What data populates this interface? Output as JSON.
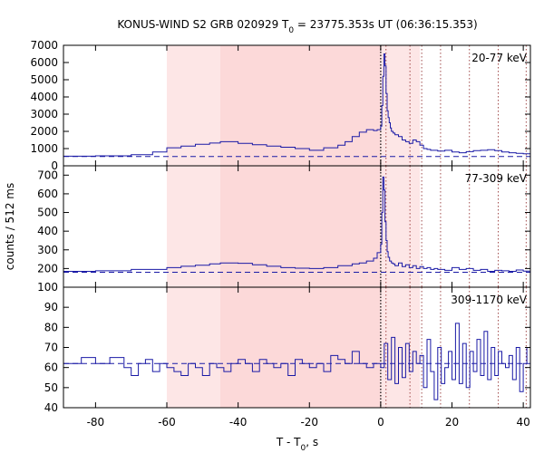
{
  "chart_data": {
    "type": "line",
    "title": "KONUS-WIND S2 GRB 020929 T",
    "title_sub": "0",
    "title_tail": " = 23775.353s UT (06:36:15.353)",
    "xlabel": "T - T",
    "xlabel_sub": "0",
    "xlabel_tail": ", s",
    "ylabel": "counts / 512 ms",
    "xlim": [
      -89,
      42
    ],
    "x_ticks": [
      -80,
      -60,
      -40,
      -20,
      0,
      20,
      40
    ],
    "x_tick_labels": [
      "-80",
      "-60",
      "-40",
      "-20",
      "0",
      "20",
      "40"
    ],
    "shaded_regions": [
      {
        "x0": -60,
        "x1": -45,
        "color": "#fde6e6"
      },
      {
        "x0": -45,
        "x1": 0,
        "color": "#fcd9d9"
      },
      {
        "x0": 0,
        "x1": 11,
        "color": "#fde6e6"
      }
    ],
    "trigger_line": 0,
    "marker_lines": [
      1.5,
      8.2,
      11.5,
      16.8,
      24.9,
      33.0,
      40.8
    ],
    "line_color": "#1a1aa6",
    "panels": [
      {
        "label": "20-77 keV",
        "ylim": [
          0,
          7000
        ],
        "y_ticks": [
          0,
          1000,
          2000,
          3000,
          4000,
          5000,
          6000,
          7000
        ],
        "y_tick_labels": [
          "0",
          "1000",
          "2000",
          "3000",
          "4000",
          "5000",
          "6000",
          "7000"
        ],
        "background": 540,
        "x": [
          -89,
          -80,
          -70,
          -64,
          -60,
          -56,
          -52,
          -48,
          -45,
          -40,
          -36,
          -32,
          -28,
          -24,
          -20,
          -16,
          -12,
          -10,
          -8,
          -6,
          -4,
          -2,
          -1,
          0,
          0.3,
          0.6,
          0.9,
          1.2,
          1.5,
          1.8,
          2.1,
          2.4,
          2.7,
          3.0,
          3.5,
          4.0,
          5.0,
          6.0,
          7.0,
          8.0,
          9.0,
          10.0,
          11.0,
          12.0,
          13.0,
          14.0,
          16.0,
          18.0,
          20.0,
          22.0,
          24.0,
          26.0,
          28.0,
          30.0,
          32.0,
          34.0,
          36.0,
          38.0,
          40.0,
          42
        ],
        "y": [
          560,
          580,
          650,
          800,
          1050,
          1150,
          1250,
          1320,
          1400,
          1300,
          1220,
          1150,
          1080,
          1000,
          900,
          1050,
          1200,
          1400,
          1700,
          1950,
          2100,
          2050,
          2100,
          2300,
          3500,
          5200,
          6500,
          5800,
          4200,
          3200,
          2800,
          2500,
          2200,
          2000,
          1900,
          1800,
          1700,
          1500,
          1400,
          1300,
          1500,
          1400,
          1200,
          1000,
          950,
          900,
          850,
          900,
          800,
          760,
          820,
          880,
          900,
          930,
          880,
          800,
          760,
          720,
          700,
          680
        ]
      },
      {
        "label": "77-309 keV",
        "ylim": [
          100,
          750
        ],
        "y_ticks": [
          100,
          200,
          300,
          400,
          500,
          600,
          700
        ],
        "y_tick_labels": [
          "100",
          "200",
          "300",
          "400",
          "500",
          "600",
          "700"
        ],
        "background": 180,
        "x": [
          -89,
          -80,
          -70,
          -60,
          -56,
          -52,
          -48,
          -45,
          -40,
          -36,
          -32,
          -28,
          -24,
          -20,
          -16,
          -12,
          -8,
          -6,
          -4,
          -2,
          -1,
          0,
          0.3,
          0.6,
          0.9,
          1.2,
          1.5,
          1.8,
          2.1,
          2.5,
          3.0,
          3.5,
          4.0,
          5.0,
          6.0,
          7.0,
          8.0,
          9.0,
          10.0,
          11.0,
          12.0,
          13.0,
          14.0,
          15.0,
          16.0,
          18.0,
          20.0,
          22.0,
          24.0,
          26.0,
          28.0,
          30.0,
          32.0,
          34.0,
          36.0,
          38.0,
          40.0,
          42
        ],
        "y": [
          185,
          188,
          195,
          205,
          212,
          218,
          225,
          230,
          228,
          220,
          212,
          205,
          202,
          200,
          205,
          215,
          225,
          230,
          240,
          255,
          285,
          330,
          500,
          690,
          620,
          450,
          350,
          290,
          260,
          240,
          230,
          225,
          215,
          230,
          210,
          220,
          205,
          215,
          200,
          210,
          200,
          205,
          195,
          200,
          195,
          190,
          205,
          195,
          200,
          190,
          195,
          185,
          190,
          188,
          185,
          192,
          186,
          190
        ]
      },
      {
        "label": "309-1170 keV",
        "ylim": [
          40,
          100
        ],
        "y_ticks": [
          40,
          50,
          60,
          70,
          80,
          90
        ],
        "y_tick_labels": [
          "40",
          "50",
          "60",
          "70",
          "80",
          "90"
        ],
        "background": 62,
        "x": [
          -89,
          -84,
          -80,
          -76,
          -72,
          -70,
          -68,
          -66,
          -64,
          -62,
          -60,
          -58,
          -56,
          -54,
          -52,
          -50,
          -48,
          -46,
          -44,
          -42,
          -40,
          -38,
          -36,
          -34,
          -32,
          -30,
          -28,
          -26,
          -24,
          -22,
          -20,
          -18,
          -16,
          -14,
          -12,
          -10,
          -8,
          -6,
          -4,
          -2,
          0,
          1,
          2,
          3,
          4,
          5,
          6,
          7,
          8,
          9,
          10,
          11,
          12,
          13,
          14,
          15,
          16,
          17,
          18,
          19,
          20,
          21,
          22,
          23,
          24,
          25,
          26,
          27,
          28,
          29,
          30,
          31,
          32,
          33,
          34,
          35,
          36,
          37,
          38,
          39,
          40,
          41,
          42
        ],
        "y": [
          62,
          65,
          62,
          65,
          60,
          56,
          62,
          64,
          58,
          62,
          60,
          58,
          56,
          62,
          60,
          56,
          62,
          60,
          58,
          62,
          64,
          62,
          58,
          64,
          62,
          60,
          62,
          56,
          64,
          62,
          60,
          62,
          58,
          66,
          64,
          62,
          68,
          62,
          60,
          62,
          60,
          72,
          54,
          75,
          52,
          70,
          55,
          72,
          58,
          68,
          62,
          66,
          50,
          74,
          58,
          44,
          70,
          52,
          60,
          68,
          54,
          82,
          52,
          72,
          50,
          68,
          58,
          74,
          56,
          78,
          54,
          70,
          56,
          68,
          62,
          60,
          66,
          54,
          70,
          48,
          62,
          70,
          60
        ]
      }
    ]
  }
}
